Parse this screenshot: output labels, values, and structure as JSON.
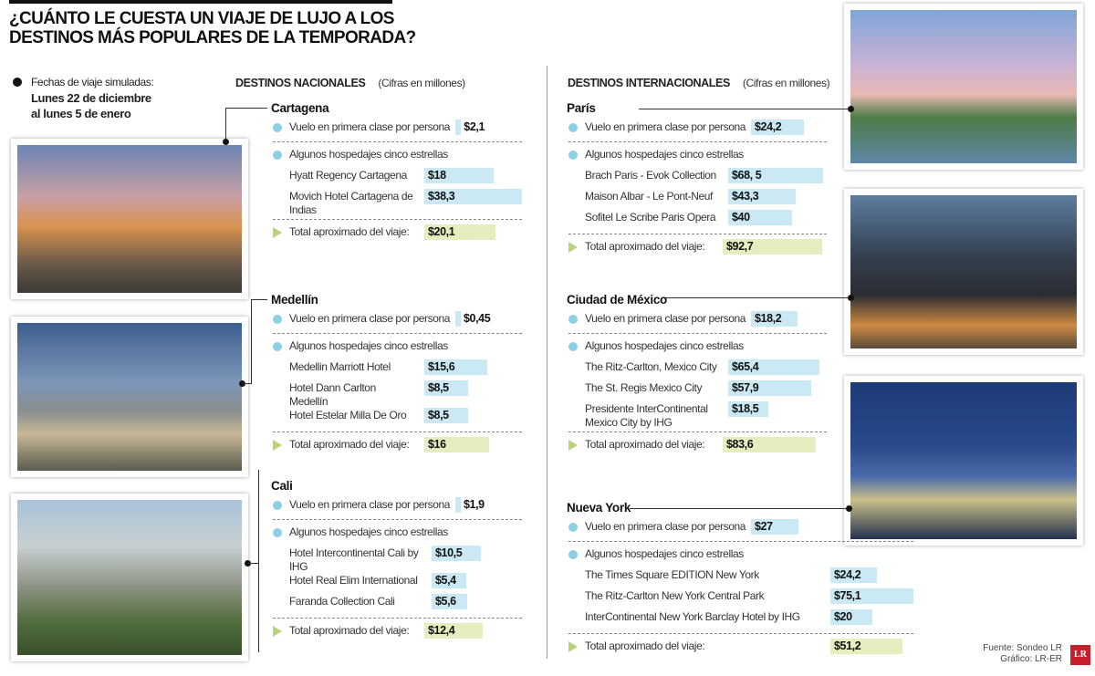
{
  "title": [
    "¿CUÁNTO LE CUESTA UN VIAJE DE LUJO A LOS",
    "DESTINOS MÁS POPULARES DE LA TEMPORADA?"
  ],
  "dates": {
    "label": "Fechas de viaje simuladas:",
    "line1": "Lunes 22 de diciembre",
    "line2": "al lunes 5 de enero"
  },
  "nacionales": {
    "title": "DESTINOS NACIONALES",
    "note": "(Cifras en millones)"
  },
  "internacionales": {
    "title": "DESTINOS INTERNACIONALES",
    "note": "(Cifras en millones)"
  },
  "labels": {
    "flight": "Vuelo en primera clase por persona",
    "hotels": "Algunos hospedajes cinco estrellas",
    "total": "Total aproximado del viaje:"
  },
  "colors": {
    "bullet": "#8dd0e6",
    "bar": "#cbe9f4",
    "total_bar": "#e4eebf",
    "logo": "#c8202a"
  },
  "destinations": [
    {
      "name": "Cartagena",
      "flight": "$2,1",
      "flight_value": 2.1,
      "hotels": [
        {
          "name": "Hyatt Regency Cartagena",
          "price": "$18",
          "value": 18
        },
        {
          "name": "Movich Hotel Cartagena de Indias",
          "price": "$38,3",
          "value": 38.3
        }
      ],
      "total": "$20,1",
      "total_value": 20.1
    },
    {
      "name": "Medellín",
      "flight": "$0,45",
      "flight_value": 0.45,
      "hotels": [
        {
          "name": "Medellin Marriott Hotel",
          "price": "$15,6",
          "value": 15.6
        },
        {
          "name": "Hotel Dann Carlton Medellín",
          "price": "$8,5",
          "value": 8.5
        },
        {
          "name": "Hotel Estelar Milla De Oro",
          "price": "$8,5",
          "value": 8.5
        }
      ],
      "total": "$16",
      "total_value": 16
    },
    {
      "name": "Cali",
      "flight": "$1,9",
      "flight_value": 1.9,
      "hotels": [
        {
          "name": "Hotel Intercontinental Cali by IHG",
          "price": "$10,5",
          "value": 10.5
        },
        {
          "name": "Hotel Real Elim International",
          "price": "$5,4",
          "value": 5.4
        },
        {
          "name": "Faranda Collection Cali",
          "price": "$5,6",
          "value": 5.6
        }
      ],
      "total": "$12,4",
      "total_value": 12.4
    },
    {
      "name": "París",
      "flight": "$24,2",
      "flight_value": 24.2,
      "hotels": [
        {
          "name": "Brach Paris - Evok Collection",
          "price": "$68, 5",
          "value": 68.5
        },
        {
          "name": "Maison Albar - Le Pont-Neuf",
          "price": "$43,3",
          "value": 43.3
        },
        {
          "name": "Sofitel Le Scribe Paris Opera",
          "price": "$40",
          "value": 40
        }
      ],
      "total": "$92,7",
      "total_value": 92.7
    },
    {
      "name": "Ciudad de México",
      "flight": "$18,2",
      "flight_value": 18.2,
      "hotels": [
        {
          "name": "The Ritz-Carlton, Mexico City",
          "price": "$65,4",
          "value": 65.4
        },
        {
          "name": "The St. Regis Mexico City",
          "price": "$57,9",
          "value": 57.9
        },
        {
          "name": "Presidente InterContinental Mexico City by IHG",
          "price": "$18,5",
          "value": 18.5
        }
      ],
      "total": "$83,6",
      "total_value": 83.6
    },
    {
      "name": "Nueva York",
      "flight": "$27",
      "flight_value": 27,
      "hotels": [
        {
          "name": "The Times Square EDITION New York",
          "price": "$24,2",
          "value": 24.2
        },
        {
          "name": "The Ritz-Carlton New York Central Park",
          "price": "$75,1",
          "value": 75.1
        },
        {
          "name": "InterContinental New York Barclay Hotel by IHG",
          "price": "$20",
          "value": 20
        }
      ],
      "total": "$51,2",
      "total_value": 51.2
    }
  ],
  "credits": {
    "source": "Fuente: Sondeo LR",
    "graphic": "Gráfico: LR-ER",
    "logo": "LR"
  }
}
